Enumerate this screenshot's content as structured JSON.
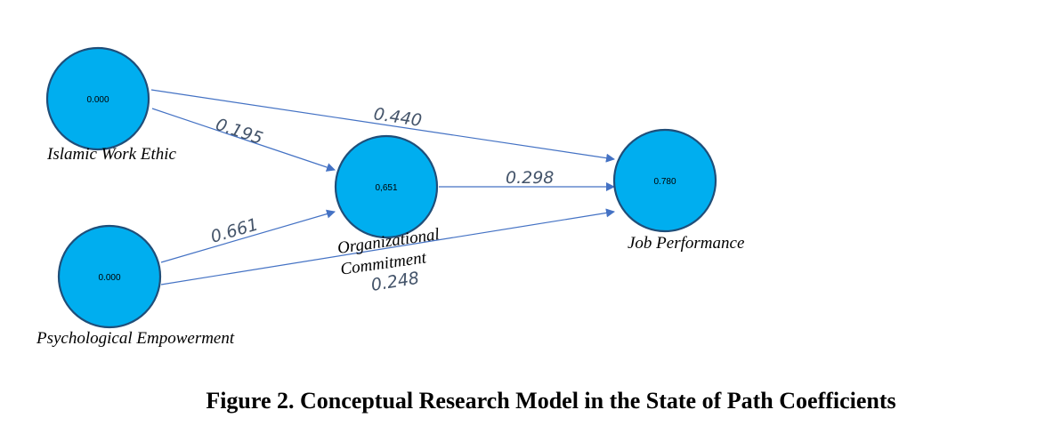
{
  "colors": {
    "node_fill": "#00aeef",
    "node_stroke": "#1f4e79",
    "edge": "#4472c4",
    "coef_text": "#44546a"
  },
  "nodes": {
    "iwe": {
      "value": "0.000",
      "label": "Islamic Work Ethic"
    },
    "pe": {
      "value": "0.000",
      "label": "Psychological Empowerment"
    },
    "oc": {
      "value": "0,651",
      "label_line1": "Organizational",
      "label_line2": "Commitment"
    },
    "jp": {
      "value": "0.780",
      "label": "Job Performance"
    }
  },
  "edges": {
    "iwe_jp": "0.440",
    "iwe_oc": "0.195",
    "pe_oc": "0.661",
    "oc_jp": "0.298",
    "pe_jp": "0.248"
  },
  "caption": "Figure 2. Conceptual Research Model in the State of Path Coefficients"
}
